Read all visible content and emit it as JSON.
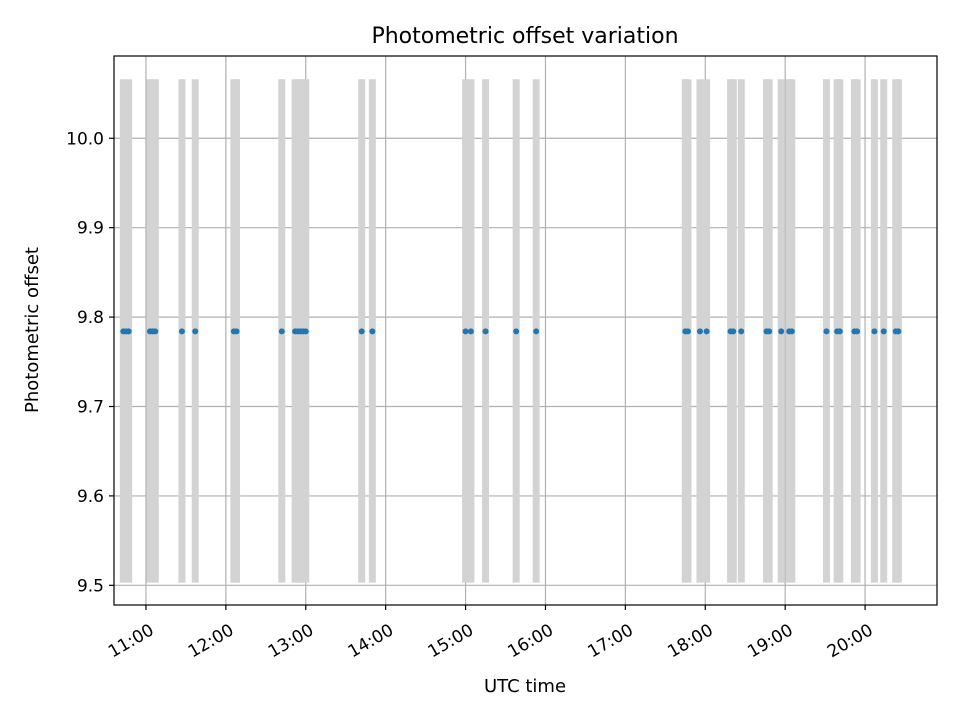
{
  "chart_data": {
    "type": "scatter",
    "title": "Photometric offset variation",
    "xlabel": "UTC time",
    "ylabel": "Photometric offset",
    "xlim": [
      "10:36",
      "20:54"
    ],
    "ylim": [
      9.478,
      10.092
    ],
    "grid": true,
    "x_ticks": [
      "11:00",
      "12:00",
      "13:00",
      "14:00",
      "15:00",
      "16:00",
      "17:00",
      "18:00",
      "19:00",
      "20:00"
    ],
    "y_ticks": [
      9.5,
      9.6,
      9.7,
      9.8,
      9.9,
      10.0
    ],
    "series": [
      {
        "color": "#1f77b4",
        "y": 9.784,
        "x": [
          "10:43",
          "10:45",
          "10:47",
          "11:03",
          "11:05",
          "11:07",
          "11:27",
          "11:37",
          "12:06",
          "12:08",
          "12:42",
          "12:52",
          "12:54",
          "12:56",
          "12:58",
          "13:00",
          "13:42",
          "13:50",
          "15:00",
          "15:04",
          "15:15",
          "15:38",
          "15:53",
          "17:45",
          "17:47",
          "17:56",
          "18:01",
          "18:19",
          "18:21",
          "18:27",
          "18:46",
          "18:48",
          "18:57",
          "19:03",
          "19:05",
          "19:31",
          "19:39",
          "19:41",
          "19:52",
          "19:54",
          "20:07",
          "20:14",
          "20:23",
          "20:25"
        ]
      }
    ],
    "shaded_bands": {
      "color": "#d3d3d3",
      "y_range": [
        9.503,
        10.066
      ],
      "x": [
        "10:43",
        "10:47",
        "11:03",
        "11:07",
        "11:27",
        "11:37",
        "12:06",
        "12:08",
        "12:42",
        "12:52",
        "12:54",
        "12:56",
        "12:58",
        "13:00",
        "13:42",
        "13:50",
        "15:00",
        "15:04",
        "15:15",
        "15:38",
        "15:53",
        "17:45",
        "17:47",
        "17:56",
        "18:01",
        "18:19",
        "18:21",
        "18:27",
        "18:46",
        "18:48",
        "18:57",
        "19:03",
        "19:05",
        "19:31",
        "19:39",
        "19:41",
        "19:52",
        "19:54",
        "20:07",
        "20:14",
        "20:23",
        "20:25"
      ]
    }
  }
}
